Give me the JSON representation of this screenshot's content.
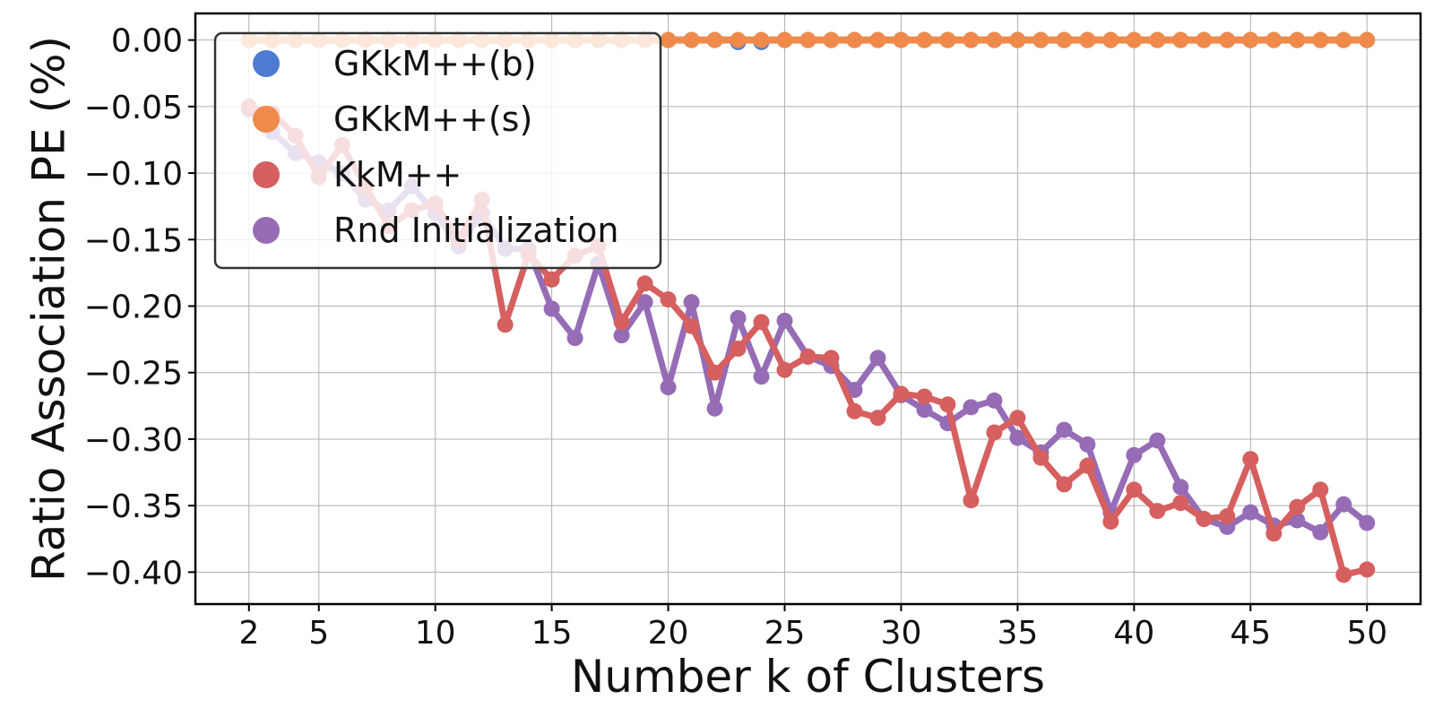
{
  "chart_data": {
    "type": "line",
    "xlabel": "Number k of Clusters",
    "ylabel": "Ratio Association PE (%)",
    "xlim": [
      -0.3,
      52.3
    ],
    "ylim": [
      -0.424,
      0.02
    ],
    "x_ticks": [
      2,
      5,
      10,
      15,
      20,
      25,
      30,
      35,
      40,
      45,
      50
    ],
    "y_ticks": [
      0.0,
      -0.05,
      -0.1,
      -0.15,
      -0.2,
      -0.25,
      -0.3,
      -0.35,
      -0.4
    ],
    "y_tick_labels": [
      "0.00",
      "−0.05",
      "−0.10",
      "−0.15",
      "−0.20",
      "−0.25",
      "−0.30",
      "−0.35",
      "−0.40"
    ],
    "grid": true,
    "legend_position": "top-left",
    "x": [
      2,
      3,
      4,
      5,
      6,
      7,
      8,
      9,
      10,
      11,
      12,
      13,
      14,
      15,
      16,
      17,
      18,
      19,
      20,
      21,
      22,
      23,
      24,
      25,
      26,
      27,
      28,
      29,
      30,
      31,
      32,
      33,
      34,
      35,
      36,
      37,
      38,
      39,
      40,
      41,
      42,
      43,
      44,
      45,
      46,
      47,
      48,
      49,
      50
    ],
    "series": [
      {
        "name": "GKkM++(b)",
        "legend_label": "GKkM++(b)",
        "color": "#4c7bd1",
        "values": [
          0,
          0,
          0,
          0,
          0,
          0,
          0,
          0,
          0,
          0,
          0,
          0,
          0,
          0,
          0,
          0,
          0,
          0,
          0,
          0,
          0,
          -0.0015,
          -0.0015,
          0,
          0,
          0,
          0,
          0,
          0,
          0,
          0,
          0,
          0,
          0,
          0,
          0,
          0,
          0,
          0,
          0,
          0,
          0,
          0,
          0,
          0,
          0,
          0,
          0,
          0
        ]
      },
      {
        "name": "GKkM++(s)",
        "legend_label": "GKkM++(s)",
        "color": "#ef8a4a",
        "values": [
          0,
          0,
          0,
          0,
          0,
          0,
          0,
          0,
          0,
          0,
          0,
          0,
          0,
          0,
          0,
          0,
          0,
          0,
          0,
          0,
          0,
          0,
          0,
          0,
          0,
          0,
          0,
          0,
          0,
          0,
          0,
          0,
          0,
          0,
          0,
          0,
          0,
          0,
          0,
          0,
          0,
          0,
          0,
          0,
          0,
          0,
          0,
          0,
          0
        ]
      },
      {
        "name": "KkM++",
        "legend_label": "KkM++",
        "color": "#d65f5f",
        "values": [
          -0.05,
          -0.055,
          -0.072,
          -0.103,
          -0.079,
          -0.11,
          -0.14,
          -0.128,
          -0.123,
          -0.15,
          -0.12,
          -0.214,
          -0.161,
          -0.18,
          -0.162,
          -0.155,
          -0.212,
          -0.183,
          -0.195,
          -0.215,
          -0.25,
          -0.232,
          -0.212,
          -0.248,
          -0.238,
          -0.239,
          -0.279,
          -0.284,
          -0.266,
          -0.268,
          -0.274,
          -0.346,
          -0.295,
          -0.284,
          -0.314,
          -0.334,
          -0.32,
          -0.362,
          -0.338,
          -0.354,
          -0.348,
          -0.36,
          -0.358,
          -0.315,
          -0.371,
          -0.351,
          -0.338,
          -0.402,
          -0.398
        ]
      },
      {
        "name": "Rnd Initialization",
        "legend_label": "Rnd Initialization",
        "color": "#956cb5",
        "values": [
          -0.052,
          -0.069,
          -0.085,
          -0.092,
          -0.1,
          -0.12,
          -0.128,
          -0.11,
          -0.13,
          -0.155,
          -0.13,
          -0.157,
          -0.157,
          -0.202,
          -0.224,
          -0.168,
          -0.222,
          -0.197,
          -0.261,
          -0.197,
          -0.277,
          -0.209,
          -0.253,
          -0.211,
          -0.238,
          -0.245,
          -0.263,
          -0.239,
          -0.267,
          -0.278,
          -0.288,
          -0.276,
          -0.271,
          -0.299,
          -0.31,
          -0.293,
          -0.304,
          -0.355,
          -0.312,
          -0.301,
          -0.336,
          -0.36,
          -0.366,
          -0.355,
          -0.365,
          -0.361,
          -0.37,
          -0.349,
          -0.363
        ]
      }
    ]
  }
}
